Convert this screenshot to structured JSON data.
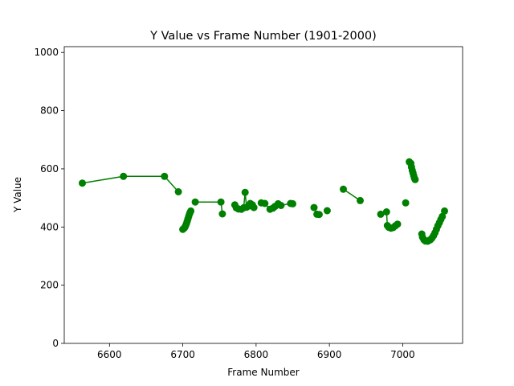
{
  "chart_data": {
    "type": "line",
    "title": "Y Value vs Frame Number (1901-2000)",
    "xlabel": "Frame Number",
    "ylabel": "Y Value",
    "xlim": [
      6537,
      6578
    ],
    "ylim": [
      0,
      1020
    ],
    "xticks": [
      6600,
      6700,
      6800,
      6900,
      7000
    ],
    "yticks": [
      0,
      200,
      400,
      600,
      800,
      1000
    ],
    "grid": false,
    "line_color": "#008000",
    "marker": "circle",
    "segments": [
      [
        [
          6563,
          551
        ],
        [
          6619,
          574
        ],
        [
          6675,
          574
        ],
        [
          6694,
          521
        ]
      ],
      [
        [
          6700,
          392
        ],
        [
          6702,
          396
        ],
        [
          6703,
          400
        ],
        [
          6704,
          405
        ],
        [
          6705,
          412
        ],
        [
          6706,
          420
        ],
        [
          6707,
          428
        ],
        [
          6708,
          436
        ],
        [
          6709,
          444
        ],
        [
          6710,
          450
        ],
        [
          6711,
          455
        ]
      ],
      [
        [
          6717,
          486
        ],
        [
          6752,
          486
        ],
        [
          6754,
          445
        ]
      ],
      [
        [
          6771,
          476
        ],
        [
          6773,
          466
        ],
        [
          6776,
          462
        ],
        [
          6780,
          461
        ],
        [
          6783,
          466
        ],
        [
          6785,
          519
        ],
        [
          6787,
          468
        ],
        [
          6790,
          472
        ],
        [
          6792,
          481
        ],
        [
          6795,
          476
        ],
        [
          6797,
          467
        ]
      ],
      [
        [
          6807,
          483
        ],
        [
          6812,
          481
        ],
        [
          6819,
          461
        ],
        [
          6823,
          465
        ],
        [
          6826,
          471
        ],
        [
          6830,
          480
        ],
        [
          6834,
          474
        ],
        [
          6847,
          481
        ],
        [
          6850,
          480
        ]
      ],
      [
        [
          6879,
          467
        ],
        [
          6883,
          444
        ],
        [
          6886,
          443
        ]
      ],
      [
        [
          6897,
          456
        ]
      ],
      [
        [
          6919,
          530
        ],
        [
          6942,
          491
        ]
      ],
      [
        [
          6970,
          444
        ]
      ],
      [
        [
          6978,
          452
        ],
        [
          6979,
          405
        ],
        [
          6981,
          399
        ],
        [
          6984,
          396
        ],
        [
          6987,
          398
        ],
        [
          6990,
          404
        ],
        [
          6993,
          410
        ]
      ],
      [
        [
          7004,
          483
        ]
      ],
      [
        [
          7009,
          624
        ],
        [
          7011,
          619
        ],
        [
          7012,
          606
        ],
        [
          7013,
          595
        ],
        [
          7014,
          586
        ],
        [
          7015,
          577
        ],
        [
          7016,
          568
        ],
        [
          7017,
          563
        ]
      ],
      [
        [
          7026,
          376
        ],
        [
          7027,
          365
        ],
        [
          7029,
          356
        ],
        [
          7031,
          352
        ],
        [
          7034,
          351
        ],
        [
          7036,
          354
        ],
        [
          7038,
          357
        ],
        [
          7040,
          362
        ],
        [
          7042,
          370
        ],
        [
          7044,
          380
        ],
        [
          7046,
          392
        ],
        [
          7048,
          404
        ],
        [
          7050,
          415
        ],
        [
          7052,
          426
        ],
        [
          7054,
          436
        ],
        [
          7057,
          455
        ]
      ]
    ]
  }
}
